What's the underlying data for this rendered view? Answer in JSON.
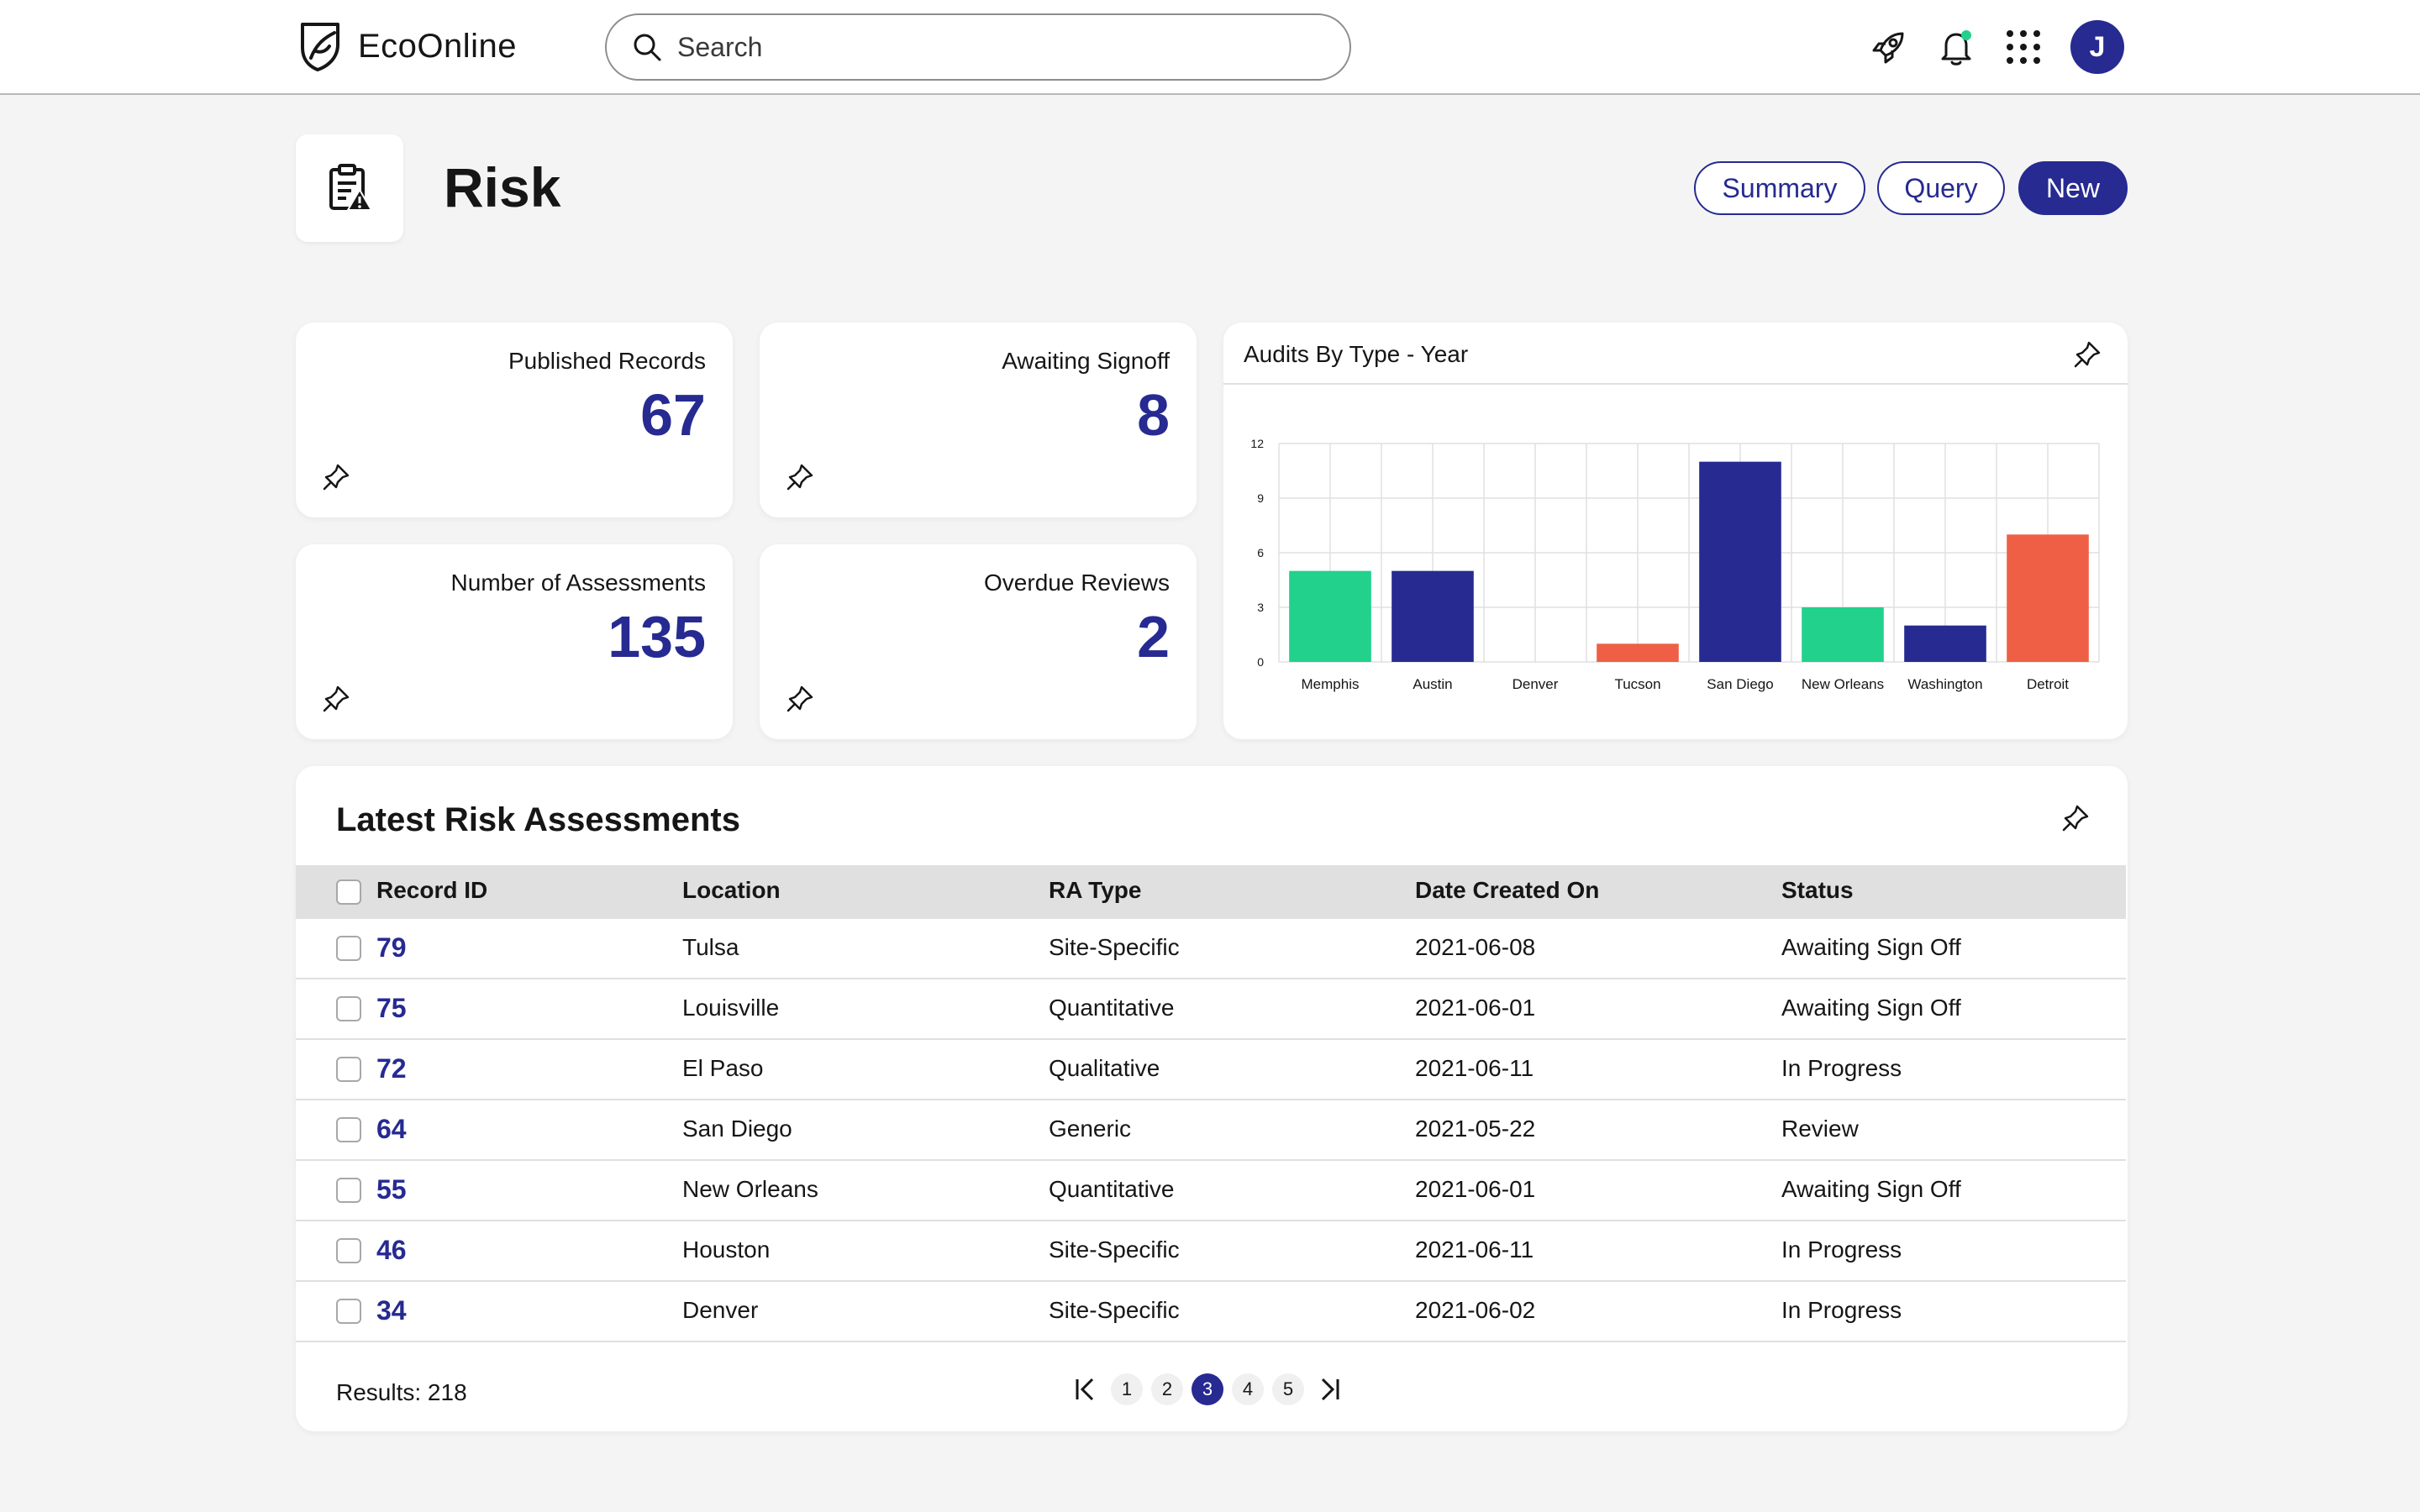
{
  "app": {
    "brand": "EcoOnline",
    "search_placeholder": "Search",
    "user_initial": "J"
  },
  "page": {
    "title": "Risk",
    "buttons": {
      "summary": "Summary",
      "query": "Query",
      "new": "New"
    }
  },
  "kpis": [
    {
      "label": "Published Records",
      "value": "67"
    },
    {
      "label": "Awaiting Signoff",
      "value": "8"
    },
    {
      "label": "Number of Assessments",
      "value": "135"
    },
    {
      "label": "Overdue Reviews",
      "value": "2"
    }
  ],
  "chart_data": {
    "type": "bar",
    "title": "Audits By Type - Year",
    "categories": [
      "Memphis",
      "Austin",
      "Denver",
      "Tucson",
      "San Diego",
      "New Orleans",
      "Washington",
      "Detroit"
    ],
    "values": [
      5,
      5,
      0,
      1,
      11,
      3,
      2,
      7
    ],
    "colors": [
      "#21d18c",
      "#262a91",
      "#21d18c",
      "#ee5f46",
      "#262a91",
      "#21d18c",
      "#262a91",
      "#ee5f46"
    ],
    "yticks": [
      0,
      3,
      6,
      9,
      12
    ],
    "ylim": [
      0,
      12
    ],
    "xlabel": "",
    "ylabel": "",
    "grid": true
  },
  "table": {
    "title": "Latest Risk Assessments",
    "columns": [
      "Record ID",
      "Location",
      "RA Type",
      "Date Created On",
      "Status"
    ],
    "rows": [
      {
        "id": "79",
        "location": "Tulsa",
        "type": "Site-Specific",
        "date": "2021-06-08",
        "status": "Awaiting Sign Off"
      },
      {
        "id": "75",
        "location": "Louisville",
        "type": "Quantitative",
        "date": "2021-06-01",
        "status": "Awaiting Sign Off"
      },
      {
        "id": "72",
        "location": "El Paso",
        "type": "Qualitative",
        "date": "2021-06-11",
        "status": "In Progress"
      },
      {
        "id": "64",
        "location": "San Diego",
        "type": "Generic",
        "date": "2021-05-22",
        "status": "Review"
      },
      {
        "id": "55",
        "location": "New Orleans",
        "type": "Quantitative",
        "date": "2021-06-01",
        "status": "Awaiting Sign Off"
      },
      {
        "id": "46",
        "location": "Houston",
        "type": "Site-Specific",
        "date": "2021-06-11",
        "status": "In Progress"
      },
      {
        "id": "34",
        "location": "Denver",
        "type": "Site-Specific",
        "date": "2021-06-02",
        "status": "In Progress"
      }
    ],
    "results_label": "Results: 218",
    "pages": [
      "1",
      "2",
      "3",
      "4",
      "5"
    ],
    "current_page": "3"
  },
  "colors": {
    "primary": "#262a91",
    "green": "#21d18c",
    "red": "#ee5f46",
    "background": "#f4f4f4"
  }
}
